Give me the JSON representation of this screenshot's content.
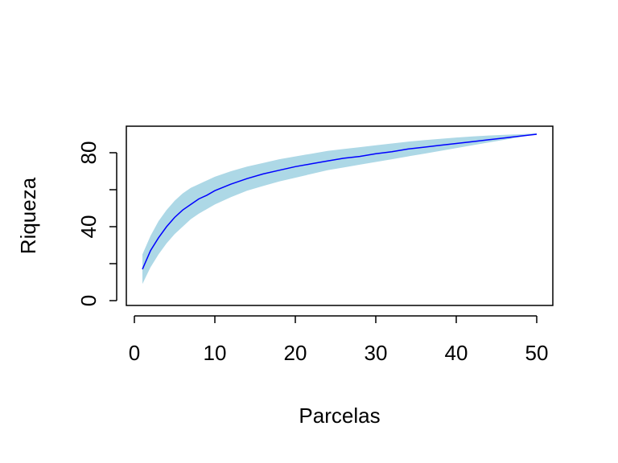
{
  "chart_data": {
    "type": "area",
    "title": "",
    "xlabel": "Parcelas",
    "ylabel": "Riqueza",
    "xlim": [
      0,
      50
    ],
    "ylim": [
      0,
      92
    ],
    "x_ticks": [
      0,
      10,
      20,
      30,
      40,
      50
    ],
    "x_tick_labels": [
      "0",
      "10",
      "20",
      "30",
      "40",
      "50"
    ],
    "y_ticks": [
      0,
      20,
      40,
      60,
      80
    ],
    "y_tick_labels": [
      "0",
      "",
      "40",
      "",
      "80"
    ],
    "grid": false,
    "legend": "none",
    "colors": {
      "band": "#ADD8E6",
      "line": "#0000FF",
      "axis": "#000000"
    },
    "series": [
      {
        "x": [
          1,
          2,
          3,
          4,
          5,
          6,
          7,
          8,
          9,
          10,
          12,
          14,
          16,
          18,
          20,
          22,
          24,
          26,
          28,
          30,
          32,
          34,
          36,
          38,
          40,
          42,
          44,
          46,
          48,
          50
        ],
        "values": [
          17,
          27,
          34,
          40,
          45,
          49,
          52,
          55,
          57,
          59.5,
          63,
          66,
          68.5,
          70.5,
          72.5,
          74,
          75.5,
          77,
          78,
          79.5,
          80.5,
          82,
          83,
          84,
          85,
          86,
          87,
          88,
          89,
          90
        ],
        "lower": [
          9,
          18,
          25,
          31,
          36,
          40,
          44,
          47,
          49.5,
          52,
          56,
          59.5,
          62,
          64.5,
          66.5,
          68.5,
          70.5,
          72,
          73.5,
          75,
          76.5,
          78,
          79.5,
          81,
          82.5,
          84,
          85.5,
          87,
          88.5,
          90
        ],
        "upper": [
          25,
          35,
          43,
          49,
          54,
          58,
          61,
          63,
          65,
          67,
          70,
          72.5,
          74.5,
          76.5,
          78,
          79.5,
          81,
          82,
          83,
          84,
          85,
          86,
          86.8,
          87.5,
          88.2,
          88.8,
          89.3,
          89.7,
          90,
          90.5
        ]
      }
    ]
  }
}
